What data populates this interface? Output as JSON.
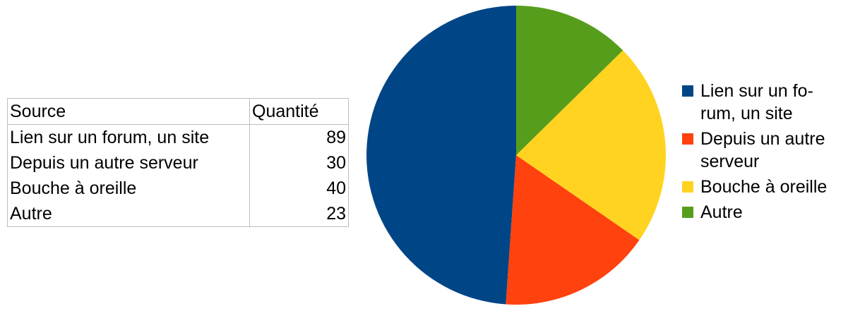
{
  "table": {
    "header": [
      "Source",
      "Quantité"
    ],
    "rows": [
      [
        "Lien sur un forum, un site",
        "89"
      ],
      [
        "Depuis un autre serveur",
        "30"
      ],
      [
        "Bouche à oreille",
        "40"
      ],
      [
        "Autre",
        "23"
      ]
    ]
  },
  "legend": [
    {
      "label": "Lien sur un fo-rum, un site",
      "color": "#004586"
    },
    {
      "label": "Depuis un autre serveur",
      "color": "#ff420e"
    },
    {
      "label": "Bouche à oreille",
      "color": "#ffd320"
    },
    {
      "label": "Autre",
      "color": "#579d1c"
    }
  ],
  "chart_data": {
    "type": "pie",
    "title": "",
    "categories": [
      "Lien sur un forum, un site",
      "Depuis un autre serveur",
      "Bouche à oreille",
      "Autre"
    ],
    "values": [
      89,
      30,
      40,
      23
    ],
    "colors": [
      "#004586",
      "#ff420e",
      "#ffd320",
      "#579d1c"
    ],
    "start": "top, clockwise order reversed (first slice counter-clockwise from top)",
    "legend_position": "right"
  }
}
